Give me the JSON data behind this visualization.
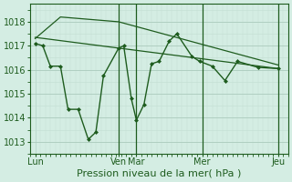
{
  "bg_color": "#d4ede3",
  "grid_color_major": "#aacabc",
  "grid_color_minor": "#c2ddd2",
  "line_color": "#1e5c1e",
  "marker_color": "#1e5c1e",
  "title": "Pression niveau de la mer( hPa )",
  "xtick_labels": [
    "Lun",
    "Ven",
    "Mar",
    "Mer",
    "Jeu"
  ],
  "xtick_positions": [
    0,
    33,
    40,
    66,
    96
  ],
  "ylim": [
    1012.5,
    1018.75
  ],
  "yticks": [
    1013,
    1014,
    1015,
    1016,
    1017,
    1018
  ],
  "xlim": [
    -2,
    100
  ],
  "series1_x": [
    0,
    3,
    6,
    10,
    13,
    17,
    21,
    24,
    27,
    33,
    35,
    38,
    40,
    43,
    46,
    49,
    53,
    56,
    62,
    65,
    70,
    75,
    80,
    88,
    96
  ],
  "series1_y": [
    1017.1,
    1017.0,
    1016.15,
    1016.15,
    1014.35,
    1014.35,
    1013.1,
    1013.4,
    1015.75,
    1016.9,
    1017.0,
    1014.8,
    1013.9,
    1014.55,
    1016.25,
    1016.35,
    1017.2,
    1017.5,
    1016.55,
    1016.35,
    1016.15,
    1015.55,
    1016.35,
    1016.1,
    1016.05
  ],
  "series2_x": [
    0,
    10,
    33,
    96
  ],
  "series2_y": [
    1017.3,
    1018.2,
    1018.0,
    1016.2
  ],
  "series3_x": [
    0,
    96
  ],
  "series3_y": [
    1017.35,
    1016.05
  ],
  "vlines": [
    33,
    40,
    66,
    96
  ]
}
